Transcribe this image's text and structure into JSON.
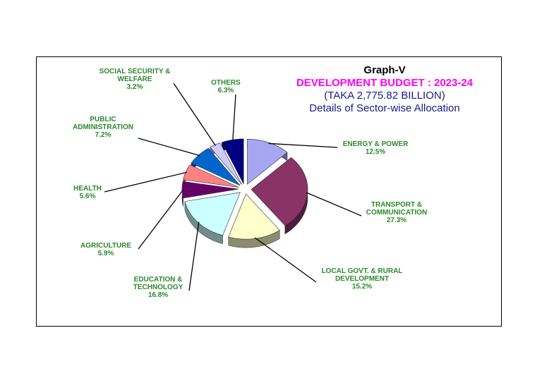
{
  "chart_data": {
    "type": "pie",
    "label": "Graph-V",
    "title": "DEVELOPMENT BUDGET : 2023-24",
    "subtitle": "(TAKA  2,775.82 BILLION)",
    "subtitle2": "Details of Sector-wise Allocation",
    "slices": [
      {
        "label": [
          "ENERGY & POWER"
        ],
        "pct": "12.5%",
        "value": 12.5,
        "color": "#a6a6f2"
      },
      {
        "label": [
          "TRANSPORT &",
          "COMMUNICATION"
        ],
        "pct": "27.3%",
        "value": 27.3,
        "color": "#8a3366"
      },
      {
        "label": [
          "LOCAL GOVT. & RURAL",
          "DEVELOPMENT"
        ],
        "pct": "15.2%",
        "value": 15.2,
        "color": "#ffffcc"
      },
      {
        "label": [
          "EDUCATION &",
          "TECHNOLOGY"
        ],
        "pct": "16.8%",
        "value": 16.8,
        "color": "#ccffff"
      },
      {
        "label": [
          "AGRICULTURE"
        ],
        "pct": "5.9%",
        "value": 5.9,
        "color": "#660066"
      },
      {
        "label": [
          "HEALTH"
        ],
        "pct": "5.6%",
        "value": 5.6,
        "color": "#ff8080"
      },
      {
        "label": [
          "PUBLIC",
          "ADMINISTRATION"
        ],
        "pct": "7.2%",
        "value": 7.2,
        "color": "#0066cc"
      },
      {
        "label": [
          "SOCIAL SECURITY &",
          "WELFARE"
        ],
        "pct": "3.2%",
        "value": 3.2,
        "color": "#ccccff"
      },
      {
        "label": [
          "OTHERS"
        ],
        "pct": "6.3%",
        "value": 6.3,
        "color": "#000080"
      }
    ],
    "label_color": "#2a8a2a",
    "title_color": "#ff00ff",
    "subtitle_color": "#1a1a8c"
  }
}
